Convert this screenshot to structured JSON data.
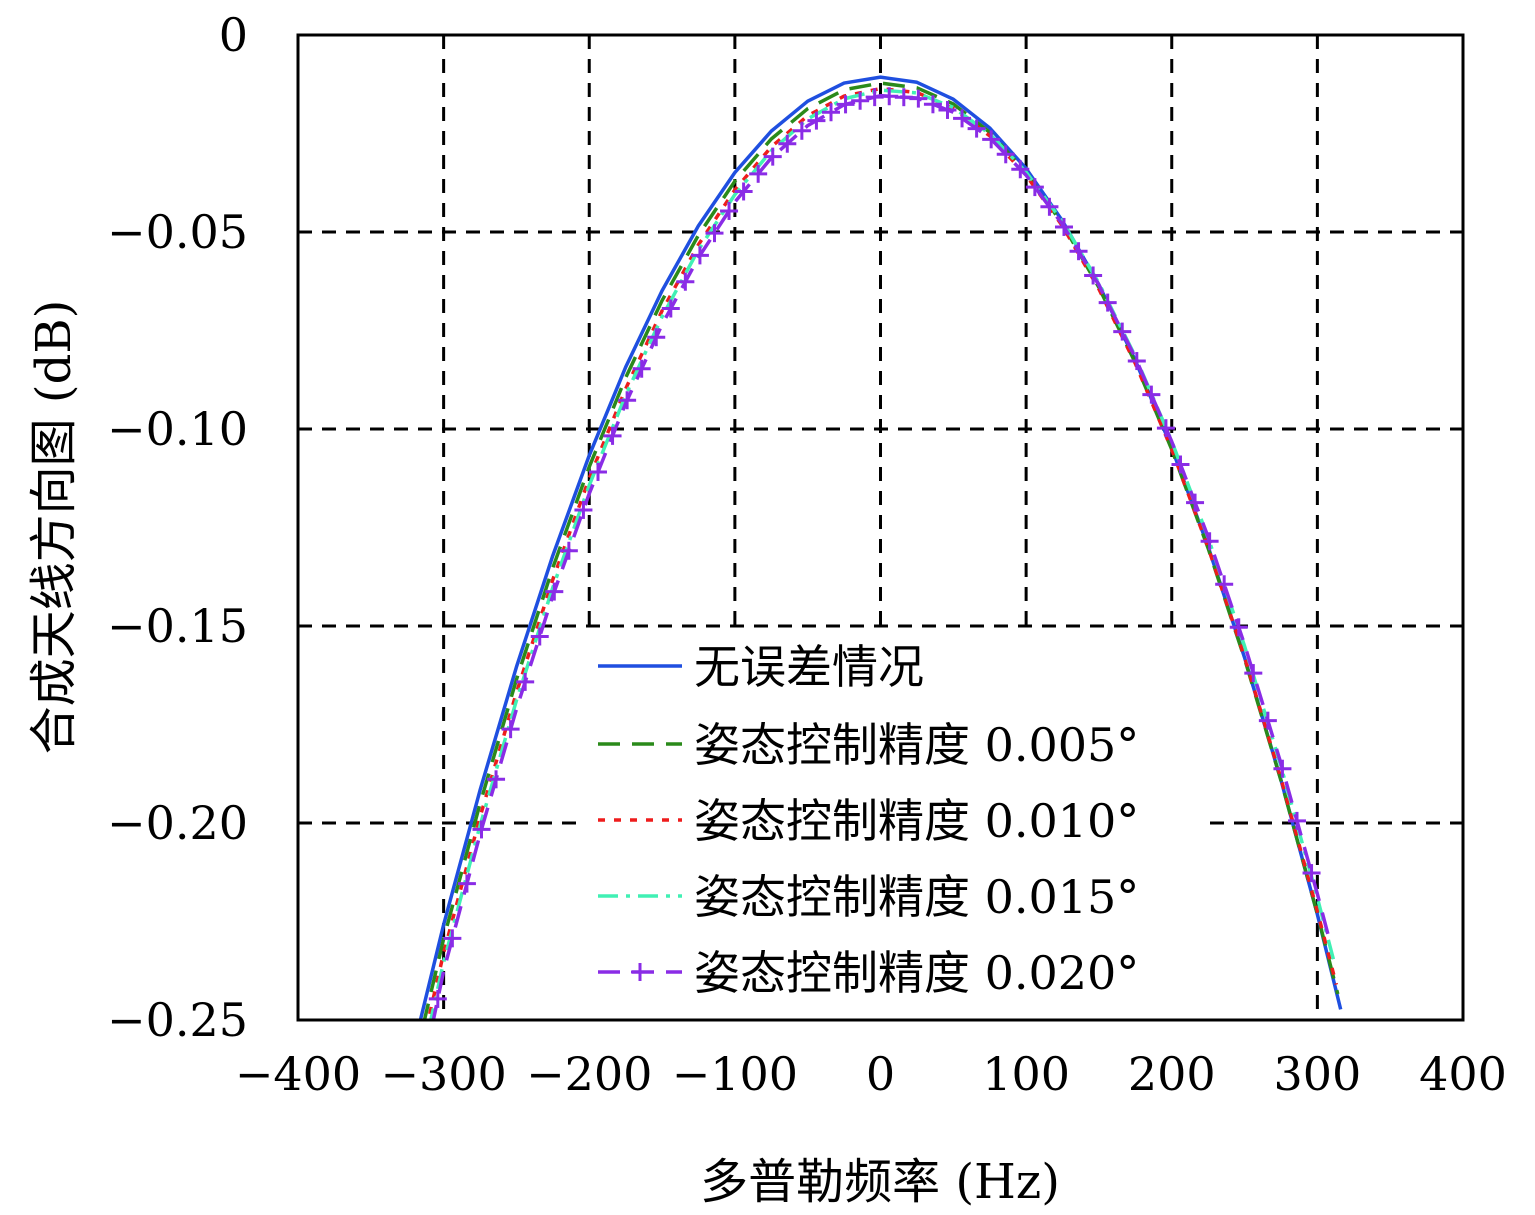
{
  "chart_data": {
    "type": "line",
    "title": "",
    "xlabel": "多普勒频率 (Hz)",
    "ylabel": "合成天线方向图 (dB)",
    "xlim": [
      -400,
      400
    ],
    "ylim": [
      -0.25,
      0
    ],
    "xticks": [
      -400,
      -300,
      -200,
      -100,
      0,
      100,
      200,
      300,
      400
    ],
    "xtick_labels": [
      "−400",
      "−300",
      "−200",
      "−100",
      "0",
      "100",
      "200",
      "300",
      "400"
    ],
    "yticks": [
      0,
      -0.05,
      -0.1,
      -0.15,
      -0.2,
      -0.25
    ],
    "ytick_labels": [
      "0",
      "−0.05",
      "−0.10",
      "−0.15",
      "−0.20",
      "−0.25"
    ],
    "grid": true,
    "legend_position": "bottom-center",
    "series": [
      {
        "name": "无误差情况",
        "color": "#1f4fe0",
        "style": "solid",
        "marker": "none",
        "x": [
          -316,
          -300,
          -275,
          -250,
          -225,
          -200,
          -175,
          -150,
          -125,
          -100,
          -75,
          -50,
          -25,
          0,
          25,
          50,
          75,
          100,
          125,
          150,
          175,
          200,
          225,
          250,
          275,
          300,
          316
        ],
        "y": [
          -0.2501,
          -0.2258,
          -0.1917,
          -0.1604,
          -0.1321,
          -0.1067,
          -0.0843,
          -0.0649,
          -0.0484,
          -0.0349,
          -0.0244,
          -0.0168,
          -0.0122,
          -0.0107,
          -0.012,
          -0.0163,
          -0.0236,
          -0.0339,
          -0.0472,
          -0.0634,
          -0.0826,
          -0.1048,
          -0.1299,
          -0.158,
          -0.1891,
          -0.2232,
          -0.2473
        ]
      },
      {
        "name": "姿态控制精度 0.005°",
        "color": "#2a8a1a",
        "style": "dashed",
        "marker": "none",
        "x": [
          -314,
          -300,
          -275,
          -250,
          -225,
          -200,
          -175,
          -150,
          -125,
          -100,
          -75,
          -50,
          -25,
          0,
          25,
          50,
          75,
          100,
          125,
          150,
          175,
          200,
          225,
          250,
          275,
          300,
          314
        ],
        "y": [
          -0.2513,
          -0.2294,
          -0.1951,
          -0.1636,
          -0.1352,
          -0.1096,
          -0.087,
          -0.0674,
          -0.0508,
          -0.0371,
          -0.0264,
          -0.0187,
          -0.0139,
          -0.0122,
          -0.0134,
          -0.0175,
          -0.0247,
          -0.0349,
          -0.048,
          -0.0641,
          -0.0832,
          -0.1052,
          -0.1303,
          -0.1583,
          -0.1892,
          -0.2231,
          -0.2434
        ]
      },
      {
        "name": "姿态控制精度 0.010°",
        "color": "#ee1c1c",
        "style": "dotted",
        "marker": "none",
        "x": [
          -312,
          -300,
          -275,
          -250,
          -225,
          -200,
          -175,
          -150,
          -125,
          -100,
          -75,
          -50,
          -25,
          0,
          25,
          50,
          75,
          100,
          125,
          150,
          175,
          200,
          225,
          250,
          275,
          300,
          313
        ],
        "y": [
          -0.2524,
          -0.233,
          -0.1985,
          -0.1669,
          -0.1382,
          -0.1125,
          -0.0898,
          -0.07,
          -0.0532,
          -0.0393,
          -0.0284,
          -0.0205,
          -0.0155,
          -0.0136,
          -0.0146,
          -0.0186,
          -0.0256,
          -0.0356,
          -0.0485,
          -0.0645,
          -0.0834,
          -0.1052,
          -0.1301,
          -0.1579,
          -0.1887,
          -0.2224,
          -0.241
        ]
      },
      {
        "name": "姿态控制精度 0.015°",
        "color": "#40f0b4",
        "style": "dashdot",
        "marker": "none",
        "x": [
          -310,
          -300,
          -275,
          -250,
          -225,
          -200,
          -175,
          -150,
          -125,
          -100,
          -75,
          -50,
          -25,
          0,
          25,
          50,
          75,
          100,
          125,
          150,
          175,
          200,
          225,
          250,
          275,
          300,
          311
        ],
        "y": [
          -0.252,
          -0.2353,
          -0.2007,
          -0.1689,
          -0.1402,
          -0.1143,
          -0.0914,
          -0.0715,
          -0.0545,
          -0.0405,
          -0.0294,
          -0.0213,
          -0.0162,
          -0.014,
          -0.0147,
          -0.0184,
          -0.0251,
          -0.0348,
          -0.0474,
          -0.063,
          -0.0816,
          -0.1031,
          -0.1276,
          -0.1551,
          -0.1856,
          -0.219,
          -0.2346
        ]
      },
      {
        "name": "姿态控制精度 0.020°",
        "color": "#8a2ce6",
        "style": "dashed",
        "marker": "plus",
        "x": [
          -308,
          -300,
          -275,
          -250,
          -225,
          -200,
          -175,
          -150,
          -125,
          -100,
          -75,
          -50,
          -25,
          0,
          25,
          50,
          75,
          100,
          125,
          150,
          175,
          200,
          225,
          250,
          275,
          300,
          309
        ],
        "y": [
          -0.2517,
          -0.2376,
          -0.2029,
          -0.1711,
          -0.1423,
          -0.1164,
          -0.0935,
          -0.0735,
          -0.0565,
          -0.0424,
          -0.0312,
          -0.023,
          -0.0177,
          -0.0154,
          -0.016,
          -0.0196,
          -0.0261,
          -0.0356,
          -0.0481,
          -0.0635,
          -0.0819,
          -0.1032,
          -0.1274,
          -0.1547,
          -0.1849,
          -0.218,
          -0.2307
        ]
      }
    ]
  }
}
